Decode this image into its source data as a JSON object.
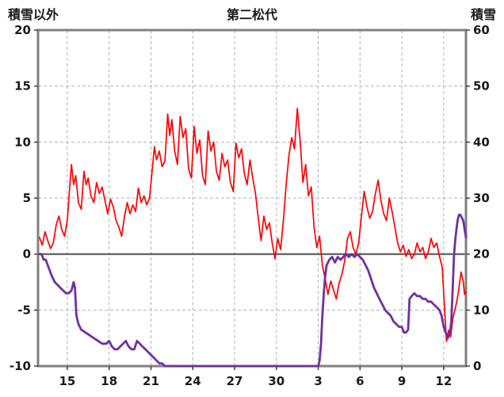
{
  "header": {
    "left_axis_title": "積雪以外",
    "title": "第二松代",
    "right_axis_title": "積雪"
  },
  "chart_data": {
    "type": "line",
    "title": "第二松代",
    "colors": {
      "grid": "#b3b3b3",
      "border": "#808080",
      "zero_line": "#555555",
      "text": "#1a1a1a",
      "temperature": "#ff0000",
      "snow": "#7030a0"
    },
    "left_axis": {
      "label": "積雪以外",
      "min": -10,
      "max": 20,
      "ticks": [
        20,
        15,
        10,
        5,
        0,
        -5,
        -10
      ]
    },
    "right_axis": {
      "label": "積雪",
      "min": 0,
      "max": 60,
      "ticks": [
        60,
        50,
        40,
        30,
        20,
        10,
        0
      ]
    },
    "x_axis": {
      "domain": [
        12.9,
        43.6
      ],
      "tick_days": [
        15,
        18,
        21,
        24,
        27,
        30,
        33,
        36,
        39,
        42
      ],
      "tick_labels": [
        "15",
        "18",
        "21",
        "24",
        "27",
        "30",
        "3",
        "6",
        "9",
        "12"
      ],
      "grid": true
    },
    "series": [
      {
        "id": "temperature-line",
        "name": "積雪以外",
        "axis": "left",
        "color": "#ff0000",
        "width": 1.7,
        "points": [
          [
            13.0,
            1.5
          ],
          [
            13.2,
            0.8
          ],
          [
            13.4,
            2.0
          ],
          [
            13.6,
            1.2
          ],
          [
            13.8,
            0.5
          ],
          [
            14.0,
            1.0
          ],
          [
            14.2,
            2.6
          ],
          [
            14.4,
            3.4
          ],
          [
            14.6,
            2.2
          ],
          [
            14.8,
            1.6
          ],
          [
            15.0,
            3.0
          ],
          [
            15.2,
            6.5
          ],
          [
            15.3,
            8.0
          ],
          [
            15.45,
            6.2
          ],
          [
            15.6,
            7.0
          ],
          [
            15.8,
            4.6
          ],
          [
            16.0,
            4.0
          ],
          [
            16.2,
            7.4
          ],
          [
            16.35,
            6.2
          ],
          [
            16.5,
            6.8
          ],
          [
            16.7,
            5.2
          ],
          [
            16.9,
            4.6
          ],
          [
            17.1,
            6.4
          ],
          [
            17.3,
            5.4
          ],
          [
            17.5,
            6.0
          ],
          [
            17.7,
            4.8
          ],
          [
            17.9,
            3.6
          ],
          [
            18.1,
            4.9
          ],
          [
            18.3,
            4.2
          ],
          [
            18.5,
            3.0
          ],
          [
            18.7,
            2.4
          ],
          [
            18.9,
            1.6
          ],
          [
            19.1,
            3.4
          ],
          [
            19.3,
            4.6
          ],
          [
            19.5,
            3.6
          ],
          [
            19.7,
            4.4
          ],
          [
            19.9,
            3.8
          ],
          [
            20.1,
            5.9
          ],
          [
            20.3,
            4.6
          ],
          [
            20.5,
            5.2
          ],
          [
            20.7,
            4.4
          ],
          [
            20.9,
            5.0
          ],
          [
            21.1,
            7.6
          ],
          [
            21.25,
            9.6
          ],
          [
            21.4,
            8.4
          ],
          [
            21.6,
            9.2
          ],
          [
            21.8,
            7.8
          ],
          [
            22.0,
            8.3
          ],
          [
            22.2,
            12.5
          ],
          [
            22.35,
            10.6
          ],
          [
            22.5,
            12.0
          ],
          [
            22.7,
            9.2
          ],
          [
            22.9,
            8.0
          ],
          [
            23.1,
            12.3
          ],
          [
            23.3,
            10.4
          ],
          [
            23.5,
            11.2
          ],
          [
            23.7,
            7.6
          ],
          [
            23.9,
            6.8
          ],
          [
            24.1,
            11.4
          ],
          [
            24.3,
            9.0
          ],
          [
            24.5,
            10.2
          ],
          [
            24.7,
            7.0
          ],
          [
            24.9,
            6.2
          ],
          [
            25.1,
            11.0
          ],
          [
            25.3,
            9.2
          ],
          [
            25.5,
            10.0
          ],
          [
            25.7,
            7.4
          ],
          [
            25.9,
            6.6
          ],
          [
            26.1,
            9.0
          ],
          [
            26.3,
            7.8
          ],
          [
            26.5,
            8.4
          ],
          [
            26.7,
            6.4
          ],
          [
            26.9,
            5.6
          ],
          [
            27.1,
            9.9
          ],
          [
            27.3,
            8.6
          ],
          [
            27.5,
            9.4
          ],
          [
            27.7,
            7.2
          ],
          [
            27.9,
            6.2
          ],
          [
            28.1,
            8.4
          ],
          [
            28.3,
            6.8
          ],
          [
            28.5,
            5.4
          ],
          [
            28.7,
            3.2
          ],
          [
            28.9,
            1.2
          ],
          [
            29.1,
            3.4
          ],
          [
            29.3,
            2.2
          ],
          [
            29.5,
            2.8
          ],
          [
            29.7,
            1.0
          ],
          [
            29.9,
            -0.4
          ],
          [
            30.1,
            1.4
          ],
          [
            30.3,
            0.4
          ],
          [
            30.5,
            3.0
          ],
          [
            30.7,
            6.2
          ],
          [
            30.9,
            8.8
          ],
          [
            31.1,
            10.4
          ],
          [
            31.3,
            9.4
          ],
          [
            31.5,
            13.0
          ],
          [
            31.7,
            10.2
          ],
          [
            31.9,
            6.4
          ],
          [
            32.1,
            8.0
          ],
          [
            32.3,
            5.2
          ],
          [
            32.5,
            6.0
          ],
          [
            32.7,
            2.4
          ],
          [
            32.9,
            0.6
          ],
          [
            33.1,
            1.6
          ],
          [
            33.3,
            -1.0
          ],
          [
            33.5,
            -2.2
          ],
          [
            33.7,
            -3.6
          ],
          [
            33.9,
            -2.4
          ],
          [
            34.1,
            -3.2
          ],
          [
            34.3,
            -4.0
          ],
          [
            34.5,
            -2.6
          ],
          [
            34.7,
            -1.8
          ],
          [
            34.9,
            -0.6
          ],
          [
            35.1,
            1.4
          ],
          [
            35.3,
            2.0
          ],
          [
            35.5,
            0.6
          ],
          [
            35.7,
            0.0
          ],
          [
            35.9,
            1.0
          ],
          [
            36.1,
            3.4
          ],
          [
            36.3,
            5.6
          ],
          [
            36.5,
            4.2
          ],
          [
            36.7,
            3.2
          ],
          [
            36.9,
            3.8
          ],
          [
            37.1,
            5.4
          ],
          [
            37.3,
            6.6
          ],
          [
            37.5,
            4.8
          ],
          [
            37.7,
            3.6
          ],
          [
            37.9,
            3.0
          ],
          [
            38.1,
            5.0
          ],
          [
            38.3,
            3.8
          ],
          [
            38.5,
            2.4
          ],
          [
            38.7,
            1.0
          ],
          [
            38.9,
            0.2
          ],
          [
            39.1,
            0.8
          ],
          [
            39.3,
            -0.2
          ],
          [
            39.5,
            0.4
          ],
          [
            39.7,
            -0.4
          ],
          [
            39.9,
            0.0
          ],
          [
            40.1,
            1.0
          ],
          [
            40.3,
            0.2
          ],
          [
            40.5,
            0.6
          ],
          [
            40.7,
            -0.4
          ],
          [
            40.9,
            0.2
          ],
          [
            41.1,
            1.4
          ],
          [
            41.3,
            0.6
          ],
          [
            41.5,
            1.0
          ],
          [
            41.7,
            -0.2
          ],
          [
            41.9,
            -1.2
          ],
          [
            42.05,
            -4.5
          ],
          [
            42.2,
            -7.8
          ],
          [
            42.35,
            -6.8
          ],
          [
            42.5,
            -7.4
          ],
          [
            42.65,
            -5.8
          ],
          [
            42.8,
            -5.0
          ],
          [
            42.95,
            -4.2
          ],
          [
            43.1,
            -3.0
          ],
          [
            43.25,
            -1.6
          ],
          [
            43.4,
            -2.4
          ],
          [
            43.5,
            -3.6
          ],
          [
            43.6,
            -3.4
          ]
        ]
      },
      {
        "id": "snow-depth-line",
        "name": "積雪",
        "axis": "right",
        "color": "#7030a0",
        "width": 2.8,
        "points": [
          [
            13.0,
            20
          ],
          [
            13.15,
            20
          ],
          [
            13.3,
            19
          ],
          [
            13.45,
            19
          ],
          [
            13.6,
            18
          ],
          [
            13.75,
            17
          ],
          [
            13.9,
            16
          ],
          [
            14.1,
            15
          ],
          [
            14.3,
            14.5
          ],
          [
            14.5,
            14
          ],
          [
            14.7,
            13.5
          ],
          [
            14.9,
            13
          ],
          [
            15.1,
            13
          ],
          [
            15.3,
            13.5
          ],
          [
            15.45,
            15
          ],
          [
            15.55,
            14
          ],
          [
            15.65,
            9
          ],
          [
            15.8,
            7.5
          ],
          [
            16.0,
            6.5
          ],
          [
            16.3,
            6
          ],
          [
            16.6,
            5.5
          ],
          [
            16.9,
            5
          ],
          [
            17.2,
            4.5
          ],
          [
            17.5,
            4
          ],
          [
            17.8,
            4
          ],
          [
            18.0,
            4.5
          ],
          [
            18.2,
            3.5
          ],
          [
            18.4,
            3
          ],
          [
            18.6,
            3
          ],
          [
            18.8,
            3.5
          ],
          [
            19.0,
            4
          ],
          [
            19.2,
            4.5
          ],
          [
            19.4,
            3.5
          ],
          [
            19.6,
            3
          ],
          [
            19.8,
            3
          ],
          [
            20.0,
            4.5
          ],
          [
            20.2,
            4
          ],
          [
            20.4,
            3.5
          ],
          [
            20.6,
            3
          ],
          [
            20.8,
            2.5
          ],
          [
            21.0,
            2
          ],
          [
            21.2,
            1.5
          ],
          [
            21.4,
            1
          ],
          [
            21.6,
            0.5
          ],
          [
            21.8,
            0.5
          ],
          [
            22.0,
            0
          ],
          [
            24.0,
            0
          ],
          [
            26.0,
            0
          ],
          [
            28.0,
            0
          ],
          [
            30.0,
            0
          ],
          [
            32.0,
            0
          ],
          [
            33.0,
            0
          ],
          [
            33.1,
            1
          ],
          [
            33.2,
            4
          ],
          [
            33.3,
            9
          ],
          [
            33.4,
            13
          ],
          [
            33.5,
            16
          ],
          [
            33.6,
            18
          ],
          [
            33.7,
            18.5
          ],
          [
            33.8,
            19
          ],
          [
            34.0,
            19.5
          ],
          [
            34.2,
            18.5
          ],
          [
            34.4,
            19.5
          ],
          [
            34.6,
            19
          ],
          [
            34.8,
            19.5
          ],
          [
            35.0,
            20
          ],
          [
            35.2,
            19.5
          ],
          [
            35.4,
            20
          ],
          [
            35.6,
            19.5
          ],
          [
            35.8,
            20
          ],
          [
            36.0,
            19.5
          ],
          [
            36.2,
            19
          ],
          [
            36.4,
            18
          ],
          [
            36.6,
            17
          ],
          [
            36.8,
            15.5
          ],
          [
            37.0,
            14
          ],
          [
            37.2,
            13
          ],
          [
            37.4,
            12
          ],
          [
            37.6,
            11
          ],
          [
            37.8,
            10
          ],
          [
            38.0,
            9.5
          ],
          [
            38.2,
            9
          ],
          [
            38.4,
            8
          ],
          [
            38.6,
            7.5
          ],
          [
            38.8,
            7
          ],
          [
            39.0,
            7
          ],
          [
            39.15,
            6
          ],
          [
            39.3,
            6
          ],
          [
            39.45,
            6.5
          ],
          [
            39.55,
            12
          ],
          [
            39.7,
            12.5
          ],
          [
            39.9,
            13
          ],
          [
            40.1,
            12.5
          ],
          [
            40.3,
            12.5
          ],
          [
            40.5,
            12
          ],
          [
            40.7,
            12
          ],
          [
            40.9,
            11.5
          ],
          [
            41.1,
            11.5
          ],
          [
            41.3,
            11
          ],
          [
            41.5,
            10.5
          ],
          [
            41.7,
            10
          ],
          [
            41.85,
            9
          ],
          [
            42.0,
            7
          ],
          [
            42.15,
            6
          ],
          [
            42.3,
            5
          ],
          [
            42.45,
            6
          ],
          [
            42.55,
            8
          ],
          [
            42.65,
            14
          ],
          [
            42.75,
            20
          ],
          [
            42.85,
            23
          ],
          [
            43.0,
            26
          ],
          [
            43.1,
            27
          ],
          [
            43.2,
            27
          ],
          [
            43.3,
            26.5
          ],
          [
            43.4,
            26
          ],
          [
            43.5,
            24.5
          ],
          [
            43.6,
            23
          ]
        ]
      }
    ]
  }
}
